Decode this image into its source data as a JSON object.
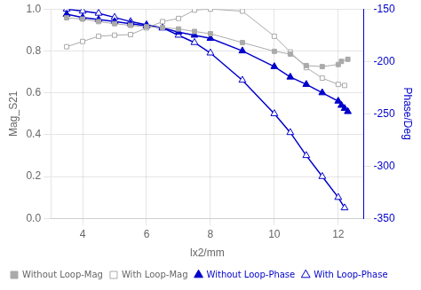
{
  "chart_data": {
    "type": "line",
    "xlabel": "lx2/mm",
    "ylabel": "Mag_S21",
    "y2label": "Phase/Deg",
    "xlim": [
      3.0,
      12.8
    ],
    "xticks": [
      4,
      6,
      8,
      10,
      12
    ],
    "ylim": [
      0.0,
      1.0
    ],
    "yticks": [
      {
        "value": 0.0,
        "label": "0.0"
      },
      0.2,
      0.4,
      0.6,
      0.8,
      {
        "value": 1.0,
        "label": "1.0"
      }
    ],
    "y2lim": [
      -350,
      -150
    ],
    "y2ticks": [
      -350,
      -300,
      -250,
      -200,
      -150
    ],
    "grid": true,
    "legend": "lower left",
    "series": [
      {
        "name": "Without Loop-Mag",
        "color": "#aaaaaa",
        "marker": "square",
        "line_style": "solid",
        "x": [
          3.5,
          4.0,
          4.5,
          5.0,
          5.5,
          6.0,
          6.5,
          7.0,
          7.5,
          8.0,
          9.0,
          10.0,
          10.5,
          11.0,
          11.5,
          12.0,
          12.1,
          12.3
        ],
        "values": [
          0.958,
          0.952,
          0.94,
          0.93,
          0.922,
          0.915,
          0.912,
          0.905,
          0.893,
          0.882,
          0.84,
          0.798,
          0.785,
          0.73,
          0.725,
          0.735,
          0.75,
          0.76
        ]
      },
      {
        "name": "With Loop-Mag",
        "color": "#aaaaaa",
        "marker": "open_square",
        "line_style": "solid",
        "x": [
          3.5,
          4.0,
          4.5,
          5.0,
          5.5,
          6.0,
          6.5,
          7.0,
          7.5,
          8.0,
          9.0,
          10.0,
          10.5,
          11.0,
          11.5,
          12.0,
          12.2
        ],
        "values": [
          0.82,
          0.845,
          0.87,
          0.875,
          0.878,
          0.91,
          0.94,
          0.955,
          0.995,
          1.0,
          0.99,
          0.87,
          0.795,
          0.72,
          0.67,
          0.64,
          0.635
        ]
      },
      {
        "name": "Without Loop-Phase",
        "color": "#0000cc",
        "marker": "triangle",
        "line_style": "solid",
        "axis": "y2",
        "x": [
          3.5,
          4.0,
          4.5,
          5.0,
          5.5,
          6.0,
          6.5,
          7.0,
          7.5,
          8.0,
          9.0,
          10.0,
          10.5,
          11.0,
          11.5,
          12.0,
          12.1,
          12.2,
          12.3
        ],
        "values": [
          -155,
          -158,
          -160,
          -162,
          -164,
          -166,
          -168,
          -172,
          -175,
          -178,
          -190,
          -205,
          -215,
          -222,
          -230,
          -238,
          -242,
          -245,
          -248
        ]
      },
      {
        "name": "With Loop-Phase",
        "color": "#0000cc",
        "marker": "open_triangle",
        "line_style": "solid",
        "axis": "y2",
        "x": [
          3.5,
          4.0,
          4.5,
          5.0,
          5.5,
          6.0,
          6.5,
          7.0,
          7.5,
          8.0,
          9.0,
          10.0,
          10.5,
          11.0,
          11.5,
          12.0,
          12.2
        ],
        "values": [
          -150,
          -152,
          -154,
          -158,
          -162,
          -165,
          -168,
          -175,
          -182,
          -192,
          -218,
          -250,
          -268,
          -290,
          -310,
          -330,
          -340
        ]
      }
    ]
  }
}
